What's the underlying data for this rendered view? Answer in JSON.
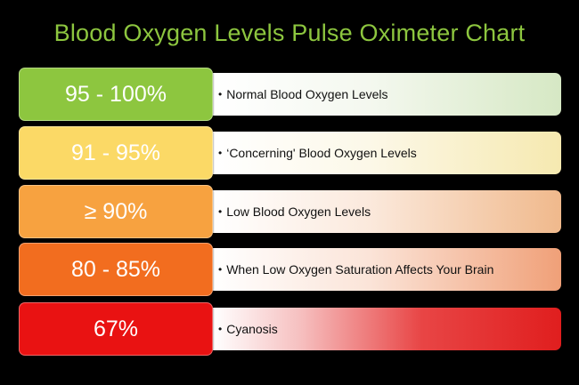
{
  "title": "Blood Oxygen Levels Pulse Oximeter Chart",
  "bullet": "•",
  "rows": [
    {
      "level": "95 - 100%",
      "description": "Normal Blood Oxygen Levels",
      "color": "#8dc63f",
      "desc_tint": "#d6e8c4"
    },
    {
      "level": "91 - 95%",
      "description": "‘Concerning' Blood Oxygen Levels",
      "color": "#fbd966",
      "desc_tint": "#f6e9b0"
    },
    {
      "level": "≥ 90%",
      "description": "Low Blood Oxygen Levels",
      "color": "#f7a240",
      "desc_tint": "#f0b98c"
    },
    {
      "level": "80 - 85%",
      "description": "When Low Oxygen Saturation Affects Your Brain",
      "color": "#f26d1f",
      "desc_tint": "#f0a078"
    },
    {
      "level": "67%",
      "description": "Cyanosis",
      "color": "#e91212",
      "desc_tint": "#e01e1e"
    }
  ]
}
